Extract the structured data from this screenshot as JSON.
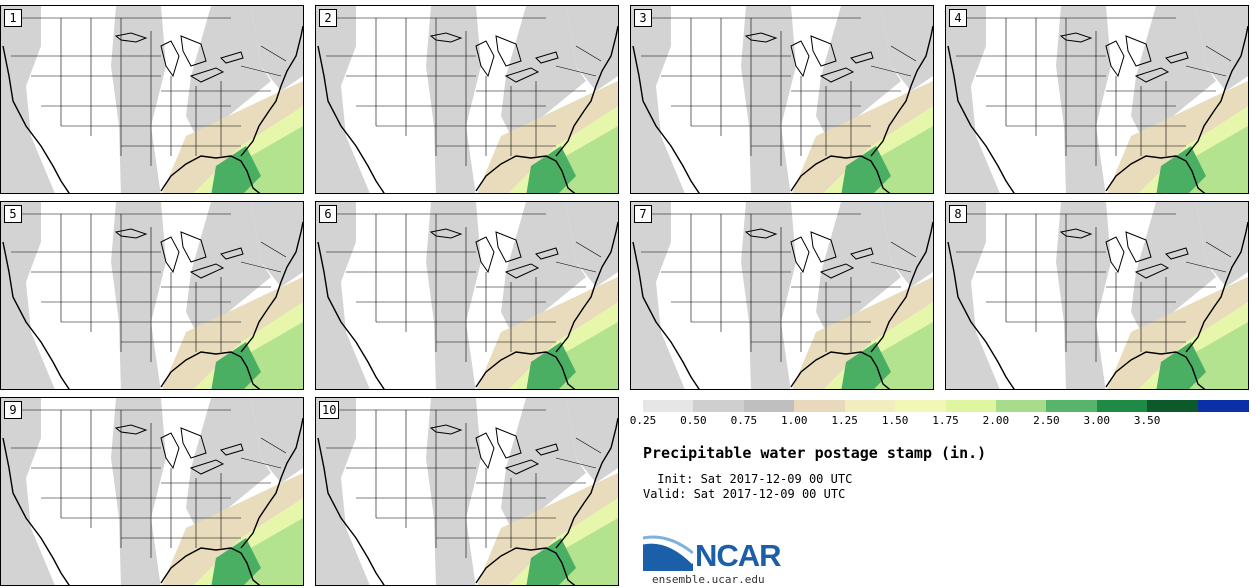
{
  "figure": {
    "title": "Precipitable water postage stamp (in.)",
    "init": " Init: Sat 2017-12-09 00 UTC",
    "valid": "Valid: Sat 2017-12-09 00 UTC",
    "logo_text": "NCAR",
    "site": "ensemble.ucar.edu"
  },
  "members": [
    "1",
    "2",
    "3",
    "4",
    "5",
    "6",
    "7",
    "8",
    "9",
    "10"
  ],
  "colorbar": {
    "ticks": [
      "0.25",
      "0.50",
      "0.75",
      "1.00",
      "1.25",
      "1.50",
      "1.75",
      "2.00",
      "2.50",
      "3.00",
      "3.50"
    ],
    "colors": [
      "#e6e6e6",
      "#cfcfcf",
      "#bfbfbf",
      "#e8d9bd",
      "#f1edbf",
      "#f2f7b8",
      "#dff5a0",
      "#a7dc8c",
      "#56b56a",
      "#1f8a45",
      "#0c5a2a",
      "#0a2fa6"
    ]
  },
  "colors": {
    "gray": "#d3d3d3",
    "tan": "#e8dcbd",
    "lightgreen": "#e6f6ab",
    "green": "#b3e38f",
    "darkgreen": "#4aae63",
    "ncar_blue": "#1b5fa8"
  }
}
